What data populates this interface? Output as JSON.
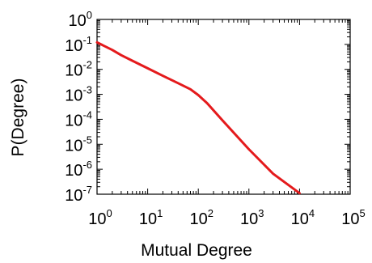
{
  "chart_data": {
    "type": "line",
    "title": "",
    "xlabel": "Mutual Degree",
    "ylabel": "P(Degree)",
    "x_scale": "log",
    "y_scale": "log",
    "xlim": [
      1,
      100000
    ],
    "ylim": [
      1e-07,
      1
    ],
    "grid": false,
    "legend": "none",
    "x_ticks": [
      {
        "base": "10",
        "exp": "0",
        "value": 1
      },
      {
        "base": "10",
        "exp": "1",
        "value": 10
      },
      {
        "base": "10",
        "exp": "2",
        "value": 100
      },
      {
        "base": "10",
        "exp": "3",
        "value": 1000
      },
      {
        "base": "10",
        "exp": "4",
        "value": 10000
      },
      {
        "base": "10",
        "exp": "5",
        "value": 100000
      }
    ],
    "y_ticks": [
      {
        "base": "10",
        "exp": "0",
        "value": 1
      },
      {
        "base": "10",
        "exp": "-1",
        "value": 0.1
      },
      {
        "base": "10",
        "exp": "-2",
        "value": 0.01
      },
      {
        "base": "10",
        "exp": "-3",
        "value": 0.001
      },
      {
        "base": "10",
        "exp": "-4",
        "value": 0.0001
      },
      {
        "base": "10",
        "exp": "-5",
        "value": 1e-05
      },
      {
        "base": "10",
        "exp": "-6",
        "value": 1e-06
      },
      {
        "base": "10",
        "exp": "-7",
        "value": 1e-07
      }
    ],
    "series": [
      {
        "color": "#e41a1c",
        "x": [
          1,
          2,
          3,
          5,
          10,
          20,
          40,
          70,
          100,
          150,
          300,
          1000,
          3000,
          10000
        ],
        "y": [
          0.12,
          0.06,
          0.037,
          0.022,
          0.011,
          0.0055,
          0.0028,
          0.0016,
          0.00093,
          0.00044,
          9e-05,
          6.3e-06,
          6.6e-07,
          1.1e-07
        ]
      }
    ]
  }
}
